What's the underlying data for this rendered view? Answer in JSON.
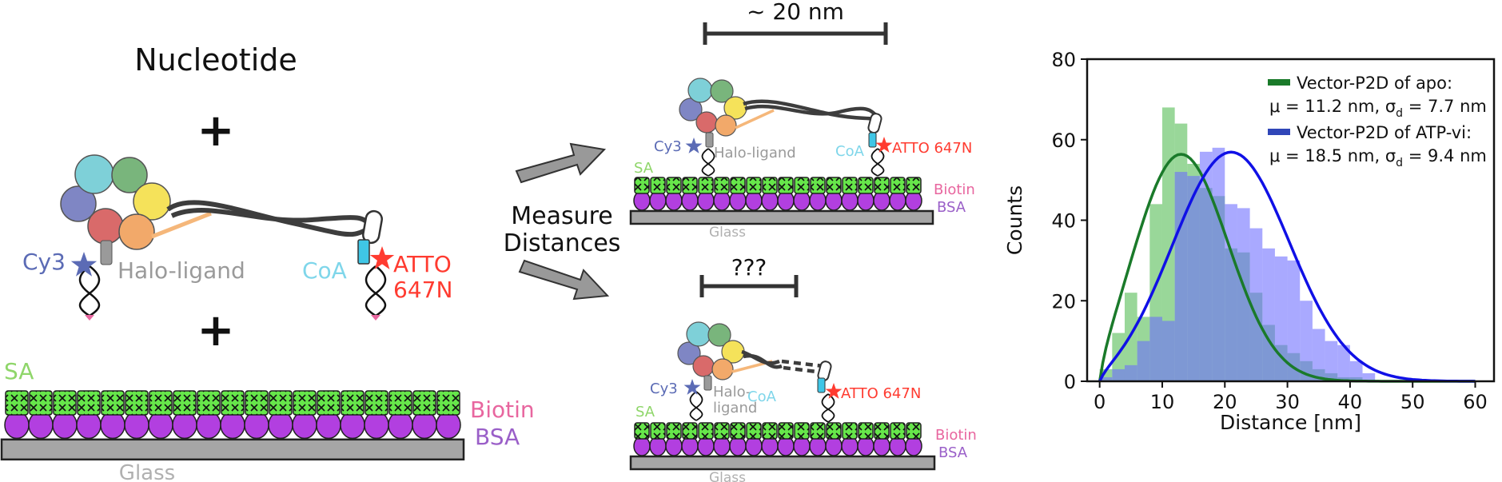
{
  "left": {
    "title": "Nucleotide",
    "plus": "+",
    "cy3": "Cy3",
    "halo": "Halo-ligand",
    "coa": "CoA",
    "atto1": "ATTO",
    "atto2": "647N",
    "sa": "SA",
    "biotin": "Biotin",
    "bsa": "BSA",
    "glass": "Glass"
  },
  "middle": {
    "measure1": "Measure",
    "measure2": "Distances",
    "top_distance": "~ 20 nm",
    "bottom_distance": "???",
    "cy3": "Cy3",
    "halo": "Halo-ligand",
    "halo_a": "Halo-",
    "halo_b": "ligand",
    "coa": "CoA",
    "atto": "ATTO 647N",
    "sa": "SA",
    "biotin": "Biotin",
    "bsa": "BSA",
    "glass": "Glass"
  },
  "colors": {
    "motor": [
      "#7f86c4",
      "#7ed0d8",
      "#79b57c",
      "#f5e25a",
      "#d96a6a",
      "#f2a96a"
    ],
    "sa_green": "#66e64a",
    "bsa_purple": "#b23fe0",
    "glass_gray": "#a6a6a6",
    "cy3_blue": "#5b6bb5",
    "coa_cyan": "#7fd6ea",
    "atto_red": "#ff3b30",
    "biotin_pink": "#e8669f",
    "bsa_label": "#9a5fc8",
    "sa_label": "#8fd66a",
    "halo_gray": "#9a9a9a"
  },
  "chart_data": {
    "type": "histogram",
    "xlabel": "Distance [nm]",
    "ylabel": "Counts",
    "xlim": [
      -2,
      63
    ],
    "ylim": [
      0,
      80
    ],
    "xticks": [
      0,
      10,
      20,
      30,
      40,
      50,
      60
    ],
    "yticks": [
      0,
      20,
      40,
      60,
      80
    ],
    "bin_width": 2,
    "series": [
      {
        "name": "Vector-P2D of apo",
        "color": "#5bbf5b",
        "bin_starts": [
          0,
          2,
          4,
          6,
          8,
          10,
          12,
          14,
          16,
          18,
          20,
          22,
          24,
          26,
          28,
          30,
          32,
          34,
          36,
          38,
          40
        ],
        "counts": [
          3,
          12,
          22,
          16,
          44,
          68,
          64,
          54,
          48,
          46,
          33,
          32,
          22,
          14,
          9,
          7,
          5,
          3,
          2,
          1,
          1
        ]
      },
      {
        "name": "Vector-P2D of ATP-vi",
        "color": "#6b6bff",
        "bin_starts": [
          0,
          2,
          4,
          6,
          8,
          10,
          12,
          14,
          16,
          18,
          20,
          22,
          24,
          26,
          28,
          30,
          32,
          34,
          36,
          38,
          40,
          42,
          44
        ],
        "counts": [
          1,
          3,
          4,
          10,
          16,
          15,
          52,
          51,
          57,
          58,
          44,
          43,
          38,
          33,
          31,
          30,
          20,
          13,
          10,
          9,
          5,
          2,
          0
        ]
      }
    ],
    "fits": [
      {
        "name": "Vector-P2D of apo",
        "mu": 11.2,
        "sigma_d": 7.7,
        "peak": 63,
        "color": "#1a7a2a"
      },
      {
        "name": "Vector-P2D of ATP-vi",
        "mu": 18.5,
        "sigma_d": 9.4,
        "peak": 61,
        "color": "#1010e6"
      }
    ],
    "legend": {
      "placement": "top-right",
      "entries": [
        {
          "line1": "Vector-P2D of apo:",
          "line2a": "μ = 11.2 nm, σ",
          "sub": "d",
          "line2b": " = 7.7 nm",
          "color": "#1a7a2a"
        },
        {
          "line1": "Vector-P2D of ATP-vi:",
          "line2a": "μ = 18.5 nm, σ",
          "sub": "d",
          "line2b": " = 9.4 nm",
          "color": "#3046b8"
        }
      ]
    }
  }
}
